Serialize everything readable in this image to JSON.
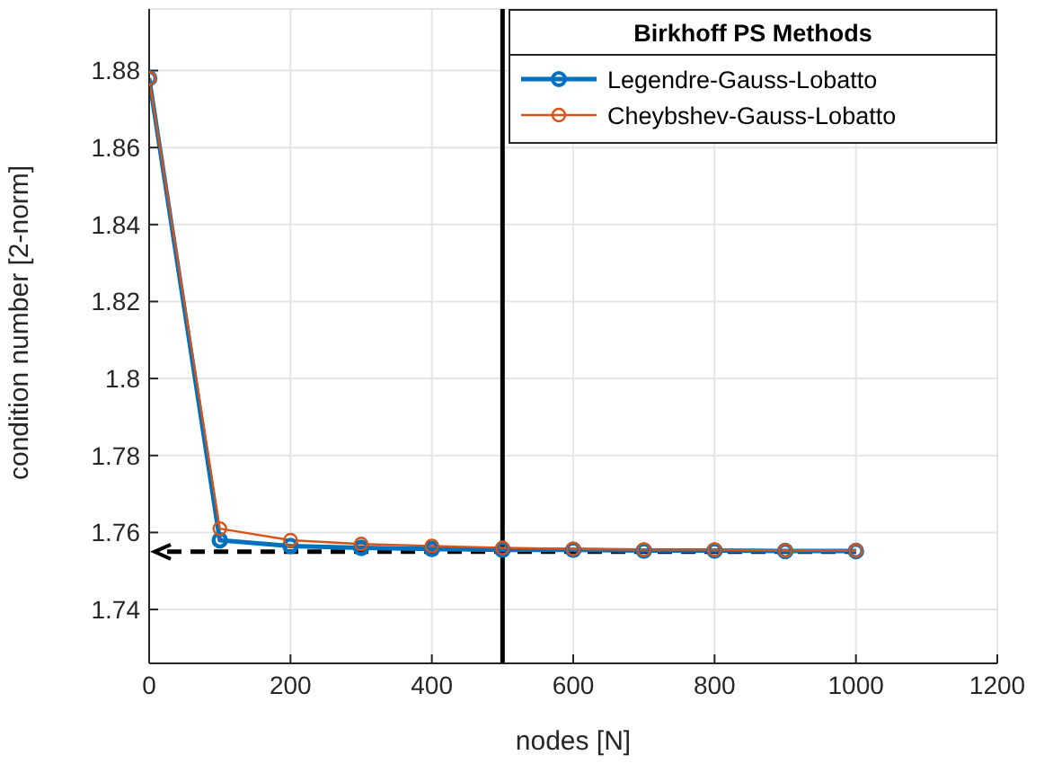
{
  "chart_data": {
    "type": "line",
    "xlabel": "nodes [N]",
    "ylabel": "condition number [2-norm]",
    "legend_title": "Birkhoff PS Methods",
    "x": [
      0,
      100,
      200,
      300,
      400,
      500,
      600,
      700,
      800,
      900,
      1000
    ],
    "series": [
      {
        "name": "Legendre-Gauss-Lobatto",
        "color": "#0072bd",
        "values": [
          1.878,
          1.758,
          1.7565,
          1.756,
          1.7557,
          1.7555,
          1.7555,
          1.7553,
          1.7553,
          1.7552,
          1.7552
        ]
      },
      {
        "name": "Cheybshev-Gauss-Lobatto",
        "color": "#d95319",
        "values": [
          1.878,
          1.761,
          1.758,
          1.757,
          1.7565,
          1.756,
          1.7557,
          1.7555,
          1.7555,
          1.7553,
          1.7553
        ]
      }
    ],
    "xlim": [
      0,
      1200
    ],
    "xticks": [
      0,
      200,
      400,
      600,
      800,
      1000,
      1200
    ],
    "ylim": [
      1.726,
      1.896
    ],
    "yticks": [
      1.74,
      1.76,
      1.78,
      1.8,
      1.82,
      1.84,
      1.86,
      1.88
    ],
    "ref_lines": [
      {
        "axis": "x",
        "value": 500,
        "color": "#000000",
        "line_style": "solid"
      },
      {
        "axis": "y",
        "value": 1.755,
        "color": "#000000",
        "line_style": "dashed"
      }
    ],
    "grid": true,
    "legend": "top right",
    "marker": "circle",
    "line_style": "solid"
  }
}
